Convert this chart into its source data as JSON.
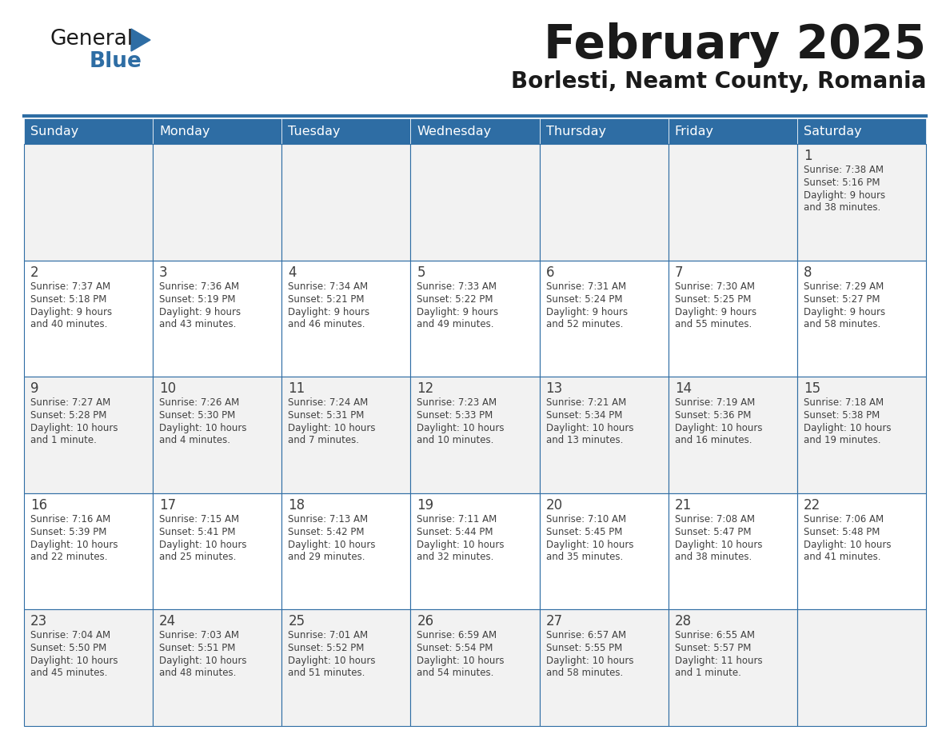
{
  "title": "February 2025",
  "subtitle": "Borlesti, Neamt County, Romania",
  "header_bg": "#2E6DA4",
  "header_text": "#FFFFFF",
  "cell_bg_odd": "#F2F2F2",
  "cell_bg_even": "#FFFFFF",
  "border_color": "#2E6DA4",
  "text_color": "#404040",
  "day_headers": [
    "Sunday",
    "Monday",
    "Tuesday",
    "Wednesday",
    "Thursday",
    "Friday",
    "Saturday"
  ],
  "days_data": [
    {
      "day": 1,
      "col": 6,
      "row": 0,
      "sunrise": "7:38 AM",
      "sunset": "5:16 PM",
      "daylight_line1": "9 hours",
      "daylight_line2": "and 38 minutes."
    },
    {
      "day": 2,
      "col": 0,
      "row": 1,
      "sunrise": "7:37 AM",
      "sunset": "5:18 PM",
      "daylight_line1": "9 hours",
      "daylight_line2": "and 40 minutes."
    },
    {
      "day": 3,
      "col": 1,
      "row": 1,
      "sunrise": "7:36 AM",
      "sunset": "5:19 PM",
      "daylight_line1": "9 hours",
      "daylight_line2": "and 43 minutes."
    },
    {
      "day": 4,
      "col": 2,
      "row": 1,
      "sunrise": "7:34 AM",
      "sunset": "5:21 PM",
      "daylight_line1": "9 hours",
      "daylight_line2": "and 46 minutes."
    },
    {
      "day": 5,
      "col": 3,
      "row": 1,
      "sunrise": "7:33 AM",
      "sunset": "5:22 PM",
      "daylight_line1": "9 hours",
      "daylight_line2": "and 49 minutes."
    },
    {
      "day": 6,
      "col": 4,
      "row": 1,
      "sunrise": "7:31 AM",
      "sunset": "5:24 PM",
      "daylight_line1": "9 hours",
      "daylight_line2": "and 52 minutes."
    },
    {
      "day": 7,
      "col": 5,
      "row": 1,
      "sunrise": "7:30 AM",
      "sunset": "5:25 PM",
      "daylight_line1": "9 hours",
      "daylight_line2": "and 55 minutes."
    },
    {
      "day": 8,
      "col": 6,
      "row": 1,
      "sunrise": "7:29 AM",
      "sunset": "5:27 PM",
      "daylight_line1": "9 hours",
      "daylight_line2": "and 58 minutes."
    },
    {
      "day": 9,
      "col": 0,
      "row": 2,
      "sunrise": "7:27 AM",
      "sunset": "5:28 PM",
      "daylight_line1": "10 hours",
      "daylight_line2": "and 1 minute."
    },
    {
      "day": 10,
      "col": 1,
      "row": 2,
      "sunrise": "7:26 AM",
      "sunset": "5:30 PM",
      "daylight_line1": "10 hours",
      "daylight_line2": "and 4 minutes."
    },
    {
      "day": 11,
      "col": 2,
      "row": 2,
      "sunrise": "7:24 AM",
      "sunset": "5:31 PM",
      "daylight_line1": "10 hours",
      "daylight_line2": "and 7 minutes."
    },
    {
      "day": 12,
      "col": 3,
      "row": 2,
      "sunrise": "7:23 AM",
      "sunset": "5:33 PM",
      "daylight_line1": "10 hours",
      "daylight_line2": "and 10 minutes."
    },
    {
      "day": 13,
      "col": 4,
      "row": 2,
      "sunrise": "7:21 AM",
      "sunset": "5:34 PM",
      "daylight_line1": "10 hours",
      "daylight_line2": "and 13 minutes."
    },
    {
      "day": 14,
      "col": 5,
      "row": 2,
      "sunrise": "7:19 AM",
      "sunset": "5:36 PM",
      "daylight_line1": "10 hours",
      "daylight_line2": "and 16 minutes."
    },
    {
      "day": 15,
      "col": 6,
      "row": 2,
      "sunrise": "7:18 AM",
      "sunset": "5:38 PM",
      "daylight_line1": "10 hours",
      "daylight_line2": "and 19 minutes."
    },
    {
      "day": 16,
      "col": 0,
      "row": 3,
      "sunrise": "7:16 AM",
      "sunset": "5:39 PM",
      "daylight_line1": "10 hours",
      "daylight_line2": "and 22 minutes."
    },
    {
      "day": 17,
      "col": 1,
      "row": 3,
      "sunrise": "7:15 AM",
      "sunset": "5:41 PM",
      "daylight_line1": "10 hours",
      "daylight_line2": "and 25 minutes."
    },
    {
      "day": 18,
      "col": 2,
      "row": 3,
      "sunrise": "7:13 AM",
      "sunset": "5:42 PM",
      "daylight_line1": "10 hours",
      "daylight_line2": "and 29 minutes."
    },
    {
      "day": 19,
      "col": 3,
      "row": 3,
      "sunrise": "7:11 AM",
      "sunset": "5:44 PM",
      "daylight_line1": "10 hours",
      "daylight_line2": "and 32 minutes."
    },
    {
      "day": 20,
      "col": 4,
      "row": 3,
      "sunrise": "7:10 AM",
      "sunset": "5:45 PM",
      "daylight_line1": "10 hours",
      "daylight_line2": "and 35 minutes."
    },
    {
      "day": 21,
      "col": 5,
      "row": 3,
      "sunrise": "7:08 AM",
      "sunset": "5:47 PM",
      "daylight_line1": "10 hours",
      "daylight_line2": "and 38 minutes."
    },
    {
      "day": 22,
      "col": 6,
      "row": 3,
      "sunrise": "7:06 AM",
      "sunset": "5:48 PM",
      "daylight_line1": "10 hours",
      "daylight_line2": "and 41 minutes."
    },
    {
      "day": 23,
      "col": 0,
      "row": 4,
      "sunrise": "7:04 AM",
      "sunset": "5:50 PM",
      "daylight_line1": "10 hours",
      "daylight_line2": "and 45 minutes."
    },
    {
      "day": 24,
      "col": 1,
      "row": 4,
      "sunrise": "7:03 AM",
      "sunset": "5:51 PM",
      "daylight_line1": "10 hours",
      "daylight_line2": "and 48 minutes."
    },
    {
      "day": 25,
      "col": 2,
      "row": 4,
      "sunrise": "7:01 AM",
      "sunset": "5:52 PM",
      "daylight_line1": "10 hours",
      "daylight_line2": "and 51 minutes."
    },
    {
      "day": 26,
      "col": 3,
      "row": 4,
      "sunrise": "6:59 AM",
      "sunset": "5:54 PM",
      "daylight_line1": "10 hours",
      "daylight_line2": "and 54 minutes."
    },
    {
      "day": 27,
      "col": 4,
      "row": 4,
      "sunrise": "6:57 AM",
      "sunset": "5:55 PM",
      "daylight_line1": "10 hours",
      "daylight_line2": "and 58 minutes."
    },
    {
      "day": 28,
      "col": 5,
      "row": 4,
      "sunrise": "6:55 AM",
      "sunset": "5:57 PM",
      "daylight_line1": "11 hours",
      "daylight_line2": "and 1 minute."
    }
  ],
  "num_rows": 5,
  "num_cols": 7
}
